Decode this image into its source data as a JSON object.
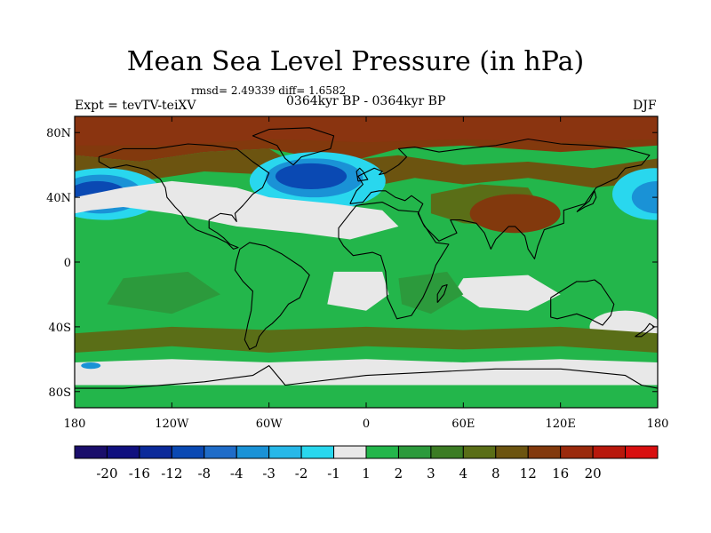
{
  "title": "Mean Sea Level Pressure (in hPa)",
  "stats_text": "rmsd= 2.49339 diff= 1.6582",
  "experiment_text": "Expt = tevTV-teiXV",
  "period_text": "0364kyr BP - 0364kyr BP",
  "season_text": "DJF",
  "lat_labels": [
    "80N",
    "40N",
    "0",
    "40S",
    "80S"
  ],
  "lat_values": [
    80,
    40,
    0,
    -40,
    -80
  ],
  "lon_labels": [
    "180",
    "120W",
    "60W",
    "0",
    "60E",
    "120E",
    "180"
  ],
  "lon_values": [
    -180,
    -120,
    -60,
    0,
    60,
    120,
    180
  ],
  "colorbar": {
    "colors": [
      "#1a0e6b",
      "#10107f",
      "#0b2a9a",
      "#0a49b3",
      "#1f6cc8",
      "#1a92d6",
      "#27b8e8",
      "#29d7ee",
      "#e8e8e8",
      "#23b64b",
      "#2c9a3c",
      "#3c7c24",
      "#5a6e17",
      "#6c5410",
      "#82390d",
      "#9a2a0c",
      "#b8180c",
      "#d80f10"
    ],
    "labels": [
      "-20",
      "-16",
      "-12",
      "-8",
      "-4",
      "-3",
      "-2",
      "-1",
      "1",
      "2",
      "3",
      "4",
      "8",
      "12",
      "16",
      "20"
    ]
  },
  "field_colors": {
    "light_green": "#23b64b",
    "mid_green": "#2c9a3c",
    "olive": "#5a6e17",
    "dark_olive": "#3c7c24",
    "brown": "#6c5410",
    "dark_brown": "#82390d",
    "near_zero": "#e8e8e8",
    "cyan": "#29d7ee",
    "light_blue": "#1a92d6",
    "blue": "#0a49b3"
  }
}
